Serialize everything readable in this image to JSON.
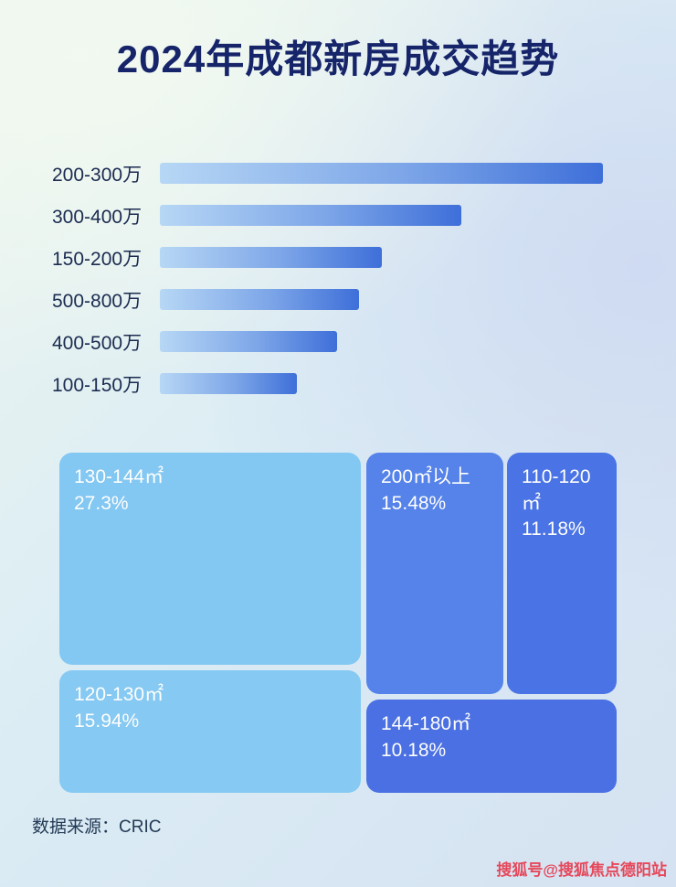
{
  "title": "2024年成都新房成交趋势",
  "chart_data": [
    {
      "type": "bar",
      "orientation": "horizontal",
      "title": "2024年成都新房成交趋势",
      "categories": [
        "200-300万",
        "300-400万",
        "150-200万",
        "500-800万",
        "400-500万",
        "100-150万"
      ],
      "values_pct_of_max": [
        100,
        68,
        50,
        45,
        40,
        31
      ],
      "value_axis_labels_shown": false,
      "legend": "none",
      "grid": "off"
    },
    {
      "type": "treemap",
      "items": [
        {
          "label": "130-144㎡",
          "value": 27.3,
          "value_label": "27.3%"
        },
        {
          "label": "200㎡以上",
          "value": 15.48,
          "value_label": "15.48%"
        },
        {
          "label": "110-120㎡",
          "value": 11.18,
          "value_label": "11.18%"
        },
        {
          "label": "120-130㎡",
          "value": 15.94,
          "value_label": "15.94%"
        },
        {
          "label": "144-180㎡",
          "value": 10.18,
          "value_label": "10.18%"
        }
      ]
    }
  ],
  "footer": {
    "source_label": "数据来源：CRIC"
  },
  "watermark": "搜狐号@搜狐焦点德阳站",
  "colors": {
    "title": "#16246a",
    "bar_gradient_start": "#b7d7f5",
    "bar_gradient_end": "#3e6fd9",
    "treemap_light": "#83c8f3",
    "treemap_mid": "#5583ea",
    "treemap_deep": "#4a74e6",
    "watermark": "#e5485a"
  }
}
